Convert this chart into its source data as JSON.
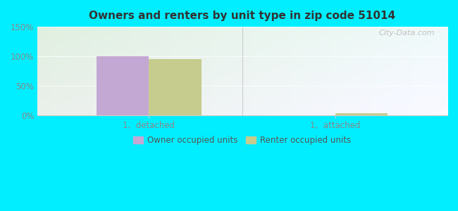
{
  "title": "Owners and renters by unit type in zip code 51014",
  "categories": [
    "1,  detached",
    "1,  attached"
  ],
  "owner_values": [
    100,
    0
  ],
  "renter_values": [
    95,
    3
  ],
  "owner_color": "#c4a8d4",
  "renter_color": "#c5cc8e",
  "ylim": [
    0,
    150
  ],
  "yticks": [
    0,
    50,
    100,
    150
  ],
  "ytick_labels": [
    "0%",
    "50%",
    "100%",
    "150%"
  ],
  "bar_width": 0.28,
  "outer_bg": "#00EEFF",
  "legend_owner": "Owner occupied units",
  "legend_renter": "Renter occupied units",
  "watermark": "City-Data.com",
  "grid_color": "#e8f0e8",
  "spine_color": "#cccccc",
  "tick_color": "#999999",
  "label_color": "#888888"
}
